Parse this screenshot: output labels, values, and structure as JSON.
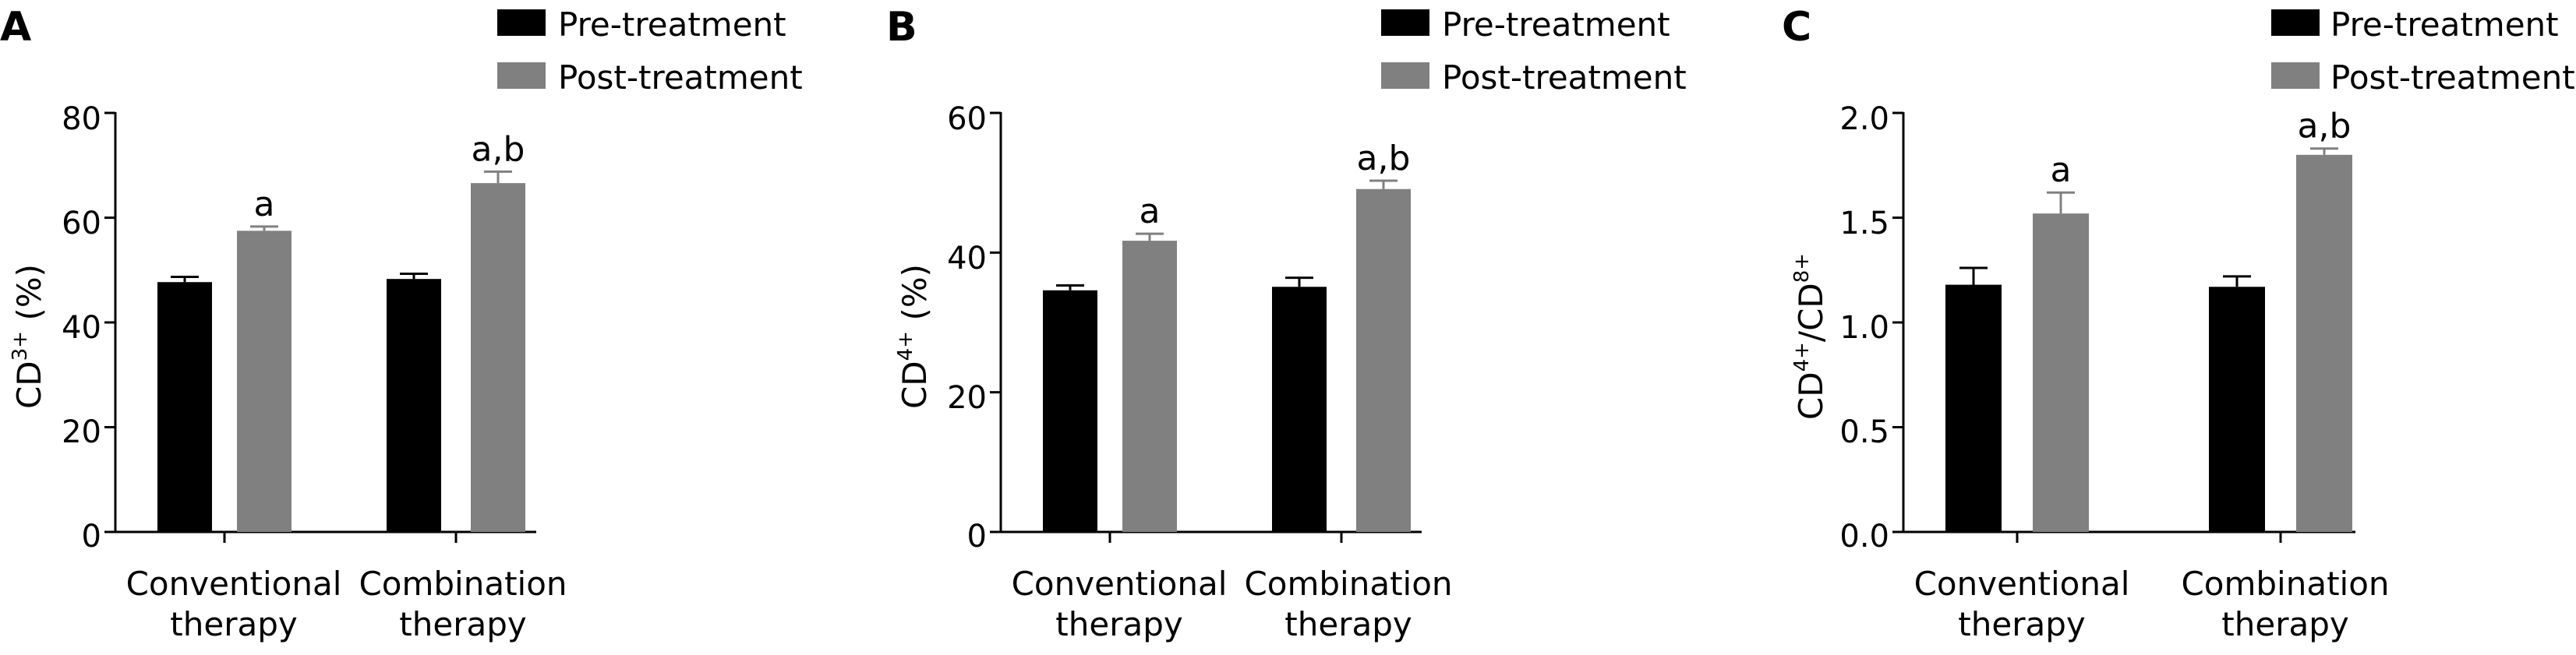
{
  "colors": {
    "pre": "#000000",
    "post": "#808080",
    "axis": "#000000"
  },
  "legend": [
    "Pre-treatment",
    "Post-treatment"
  ],
  "chart_data": [
    {
      "type": "bar",
      "panel": "A",
      "ylabel_main": "CD",
      "ylabel_sup": "3+",
      "ylabel_suffix": " (%)",
      "ylim": [
        0,
        80
      ],
      "yticks": [
        "0",
        "20",
        "40",
        "60",
        "80"
      ],
      "categories": [
        [
          "Conventional",
          "therapy"
        ],
        [
          "Combination",
          "therapy"
        ]
      ],
      "series": [
        {
          "name": "Pre-treatment",
          "values": [
            47.7,
            48.3
          ],
          "errors": [
            1.0,
            1.0
          ],
          "annotations": [
            "",
            ""
          ]
        },
        {
          "name": "Post-treatment",
          "values": [
            57.5,
            66.6
          ],
          "errors": [
            0.8,
            2.2
          ],
          "annotations": [
            "a",
            "a,b"
          ]
        }
      ]
    },
    {
      "type": "bar",
      "panel": "B",
      "ylabel_main": "CD",
      "ylabel_sup": "4+",
      "ylabel_suffix": " (%)",
      "ylim": [
        0,
        60
      ],
      "yticks": [
        "0",
        "20",
        "40",
        "60"
      ],
      "categories": [
        [
          "Conventional",
          "therapy"
        ],
        [
          "Combination",
          "therapy"
        ]
      ],
      "series": [
        {
          "name": "Pre-treatment",
          "values": [
            34.6,
            35.1
          ],
          "errors": [
            0.7,
            1.3
          ],
          "annotations": [
            "",
            ""
          ]
        },
        {
          "name": "Post-treatment",
          "values": [
            41.7,
            49.1
          ],
          "errors": [
            1.0,
            1.2
          ],
          "annotations": [
            "a",
            "a,b"
          ]
        }
      ]
    },
    {
      "type": "bar",
      "panel": "C",
      "ylabel_main": "CD",
      "ylabel_sup": "4+",
      "ylabel_mid": "/CD",
      "ylabel_sup2": "8+",
      "ylim": [
        0,
        2.0
      ],
      "yticks": [
        "0.0",
        "0.5",
        "1.0",
        "1.5",
        "2.0"
      ],
      "categories": [
        [
          "Conventional",
          "therapy"
        ],
        [
          "Combination",
          "therapy"
        ]
      ],
      "series": [
        {
          "name": "Pre-treatment",
          "values": [
            1.18,
            1.17
          ],
          "errors": [
            0.08,
            0.05
          ],
          "annotations": [
            "",
            ""
          ]
        },
        {
          "name": "Post-treatment",
          "values": [
            1.52,
            1.8
          ],
          "errors": [
            0.1,
            0.03
          ],
          "annotations": [
            "a",
            "a,b"
          ]
        }
      ]
    }
  ]
}
